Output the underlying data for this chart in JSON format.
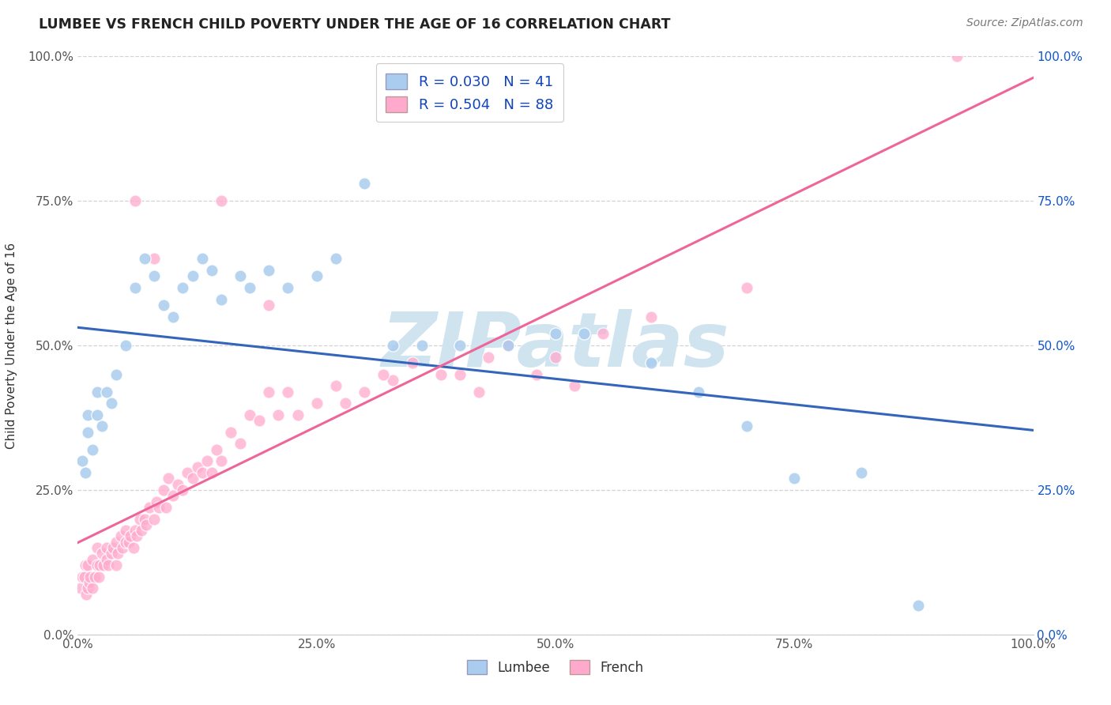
{
  "title": "LUMBEE VS FRENCH CHILD POVERTY UNDER THE AGE OF 16 CORRELATION CHART",
  "source": "Source: ZipAtlas.com",
  "ylabel": "Child Poverty Under the Age of 16",
  "xlim": [
    0,
    1
  ],
  "ylim": [
    0,
    1
  ],
  "x_ticks": [
    0,
    0.25,
    0.5,
    0.75,
    1.0
  ],
  "y_ticks": [
    0,
    0.25,
    0.5,
    0.75,
    1.0
  ],
  "x_tick_labels": [
    "0.0%",
    "25.0%",
    "50.0%",
    "75.0%",
    "100.0%"
  ],
  "y_tick_labels": [
    "0.0%",
    "25.0%",
    "50.0%",
    "75.0%",
    "100.0%"
  ],
  "lumbee_R": 0.03,
  "lumbee_N": 41,
  "french_R": 0.504,
  "french_N": 88,
  "lumbee_color": "#aaccee",
  "french_color": "#ffaacc",
  "lumbee_line_color": "#3366bb",
  "french_line_color": "#ee6699",
  "background_color": "#ffffff",
  "watermark": "ZIPatlas",
  "watermark_color": "#d0e4f0",
  "legend_text_color": "#1144bb",
  "left_tick_color": "#555555",
  "right_tick_color": "#1155cc",
  "lumbee_x": [
    0.005,
    0.008,
    0.01,
    0.01,
    0.015,
    0.02,
    0.02,
    0.025,
    0.03,
    0.035,
    0.04,
    0.05,
    0.06,
    0.07,
    0.08,
    0.09,
    0.1,
    0.11,
    0.12,
    0.13,
    0.14,
    0.15,
    0.17,
    0.18,
    0.2,
    0.22,
    0.25,
    0.27,
    0.3,
    0.33,
    0.36,
    0.4,
    0.45,
    0.5,
    0.53,
    0.6,
    0.65,
    0.7,
    0.75,
    0.82,
    0.88
  ],
  "lumbee_y": [
    0.3,
    0.28,
    0.35,
    0.38,
    0.32,
    0.42,
    0.38,
    0.36,
    0.42,
    0.4,
    0.45,
    0.5,
    0.6,
    0.65,
    0.62,
    0.57,
    0.55,
    0.6,
    0.62,
    0.65,
    0.63,
    0.58,
    0.62,
    0.6,
    0.63,
    0.6,
    0.62,
    0.65,
    0.78,
    0.5,
    0.5,
    0.5,
    0.5,
    0.52,
    0.52,
    0.47,
    0.42,
    0.36,
    0.27,
    0.28,
    0.05
  ],
  "french_x": [
    0.003,
    0.005,
    0.007,
    0.008,
    0.009,
    0.01,
    0.01,
    0.012,
    0.013,
    0.015,
    0.015,
    0.018,
    0.02,
    0.02,
    0.022,
    0.023,
    0.025,
    0.027,
    0.03,
    0.03,
    0.032,
    0.035,
    0.037,
    0.04,
    0.04,
    0.042,
    0.045,
    0.047,
    0.05,
    0.05,
    0.053,
    0.055,
    0.058,
    0.06,
    0.062,
    0.065,
    0.067,
    0.07,
    0.072,
    0.075,
    0.08,
    0.082,
    0.085,
    0.09,
    0.092,
    0.095,
    0.1,
    0.105,
    0.11,
    0.115,
    0.12,
    0.125,
    0.13,
    0.135,
    0.14,
    0.145,
    0.15,
    0.16,
    0.17,
    0.18,
    0.19,
    0.2,
    0.21,
    0.22,
    0.23,
    0.25,
    0.27,
    0.3,
    0.33,
    0.35,
    0.38,
    0.4,
    0.43,
    0.45,
    0.48,
    0.5,
    0.55,
    0.6,
    0.7,
    0.92,
    0.28,
    0.32,
    0.42,
    0.52,
    0.06,
    0.08,
    0.15,
    0.2
  ],
  "french_y": [
    0.08,
    0.1,
    0.1,
    0.12,
    0.07,
    0.08,
    0.12,
    0.09,
    0.1,
    0.08,
    0.13,
    0.1,
    0.12,
    0.15,
    0.1,
    0.12,
    0.14,
    0.12,
    0.13,
    0.15,
    0.12,
    0.14,
    0.15,
    0.12,
    0.16,
    0.14,
    0.17,
    0.15,
    0.16,
    0.18,
    0.16,
    0.17,
    0.15,
    0.18,
    0.17,
    0.2,
    0.18,
    0.2,
    0.19,
    0.22,
    0.2,
    0.23,
    0.22,
    0.25,
    0.22,
    0.27,
    0.24,
    0.26,
    0.25,
    0.28,
    0.27,
    0.29,
    0.28,
    0.3,
    0.28,
    0.32,
    0.3,
    0.35,
    0.33,
    0.38,
    0.37,
    0.42,
    0.38,
    0.42,
    0.38,
    0.4,
    0.43,
    0.42,
    0.44,
    0.47,
    0.45,
    0.45,
    0.48,
    0.5,
    0.45,
    0.48,
    0.52,
    0.55,
    0.6,
    1.0,
    0.4,
    0.45,
    0.42,
    0.43,
    0.75,
    0.65,
    0.75,
    0.57
  ]
}
